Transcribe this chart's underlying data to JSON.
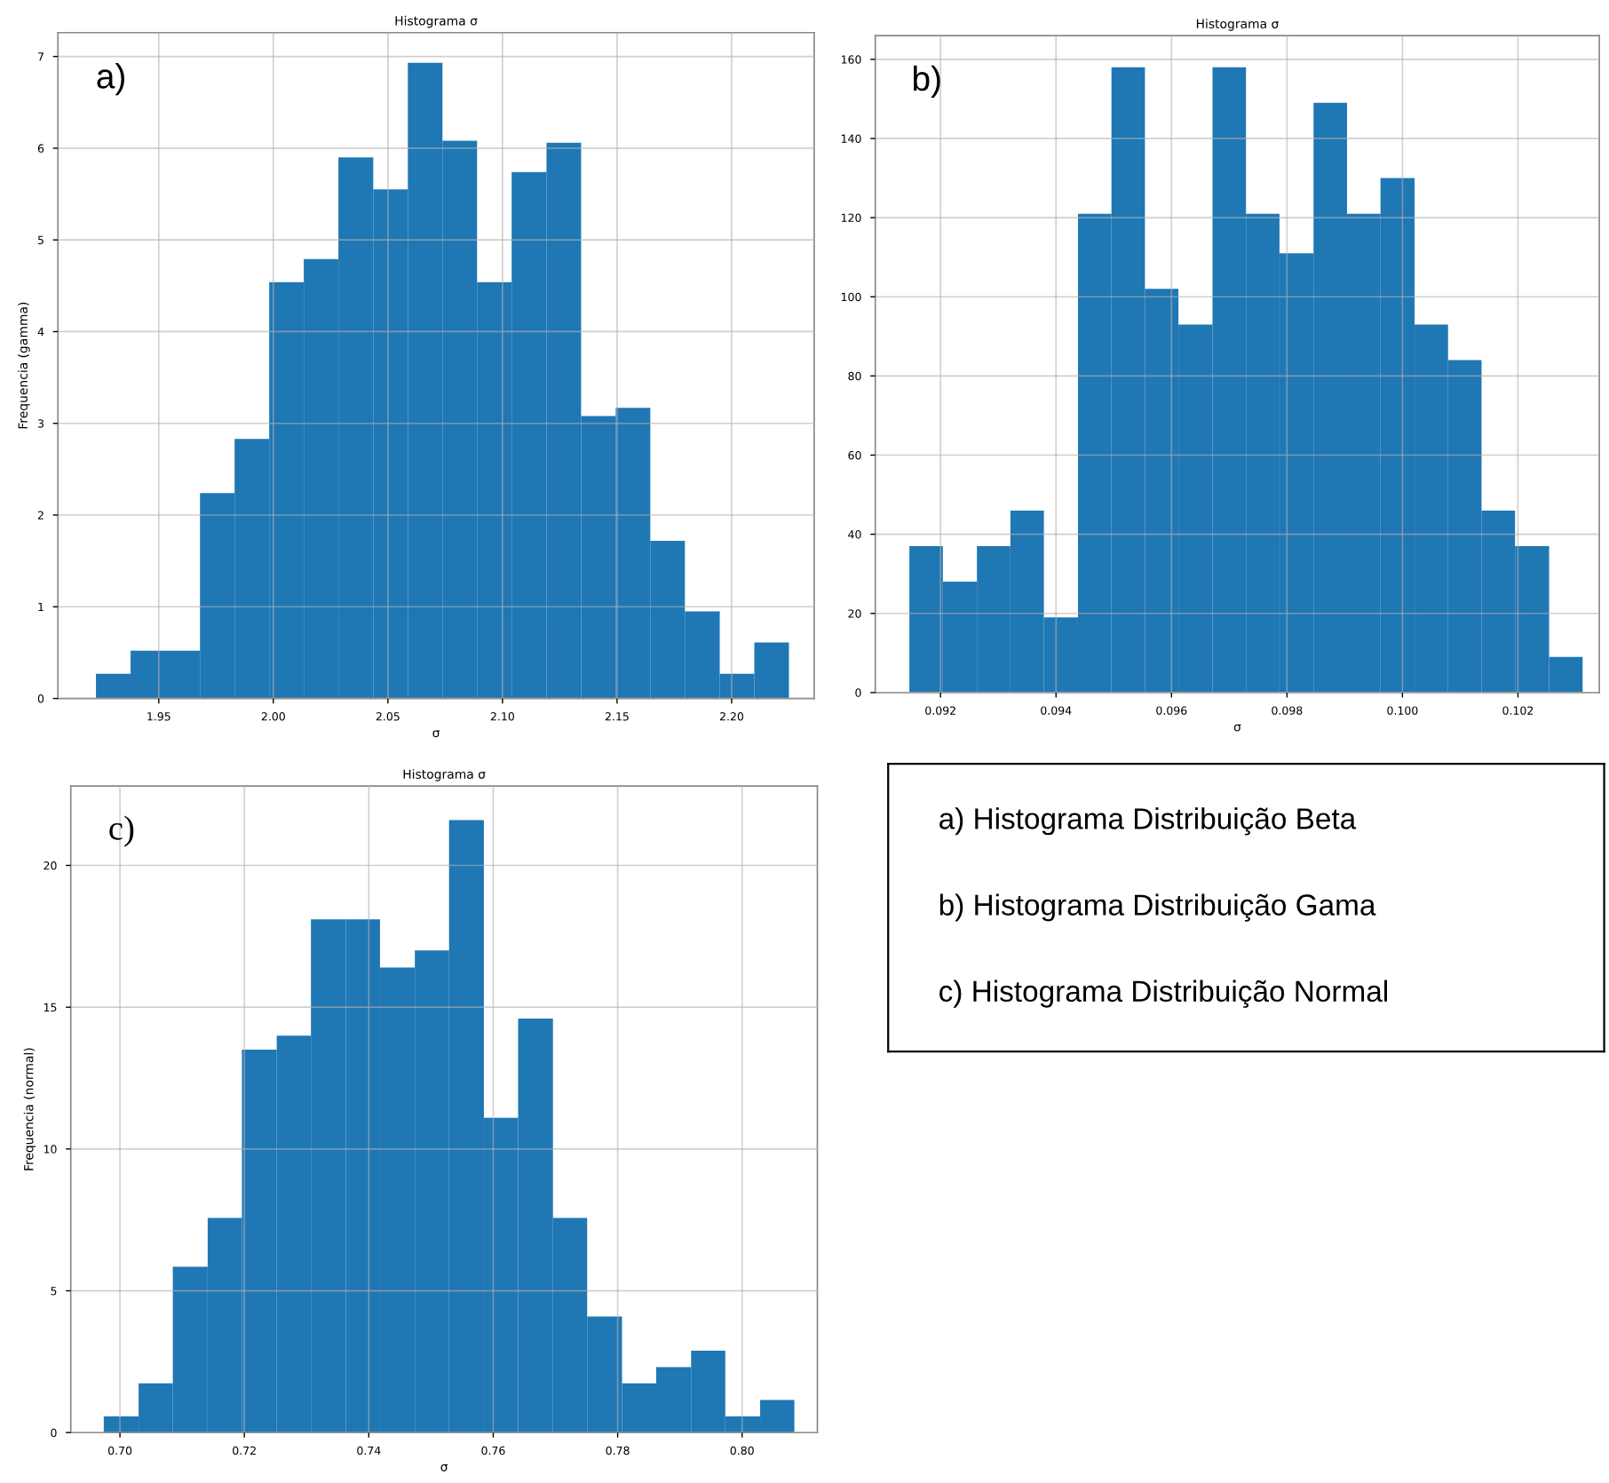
{
  "chart_data": [
    {
      "type": "histogram",
      "title": "Histograma σ",
      "xlabel": "σ",
      "ylabel": "Frequencia (gamma)",
      "annotations": [
        "a)"
      ],
      "color": "#1f77b4",
      "grid": true,
      "bins": [
        1.9226,
        1.9377,
        1.9528,
        1.968,
        1.9831,
        1.9982,
        2.0133,
        2.0284,
        2.0436,
        2.0587,
        2.0738,
        2.0889,
        2.104,
        2.1192,
        2.1343,
        2.1494,
        2.1645,
        2.1796,
        2.1948,
        2.2099,
        2.225
      ],
      "values": [
        0.27,
        0.52,
        0.52,
        2.24,
        2.83,
        4.54,
        4.79,
        5.9,
        5.55,
        6.93,
        6.08,
        4.54,
        5.74,
        6.06,
        3.08,
        3.17,
        1.72,
        0.95,
        0.27,
        0.61
      ],
      "xlim": [
        1.906,
        2.236
      ],
      "ylim": [
        0,
        7.26
      ],
      "xticks": [
        1.95,
        {
          "value": 2.0,
          "label": "2.00"
        },
        2.05,
        {
          "value": 2.1,
          "label": "2.10"
        },
        2.15,
        {
          "value": 2.2,
          "label": "2.20"
        }
      ],
      "yticks": [
        0,
        1,
        2,
        3,
        4,
        5,
        6,
        7
      ]
    },
    {
      "type": "histogram",
      "title": "Histograma σ",
      "xlabel": "σ",
      "annotations": [
        "b)"
      ],
      "color": "#1f77b4",
      "grid": true,
      "bins": [
        0.09146,
        0.09204,
        0.09263,
        0.09321,
        0.09379,
        0.09438,
        0.09496,
        0.09554,
        0.09612,
        0.09671,
        0.09729,
        0.09787,
        0.09846,
        0.09904,
        0.09962,
        0.10021,
        0.10079,
        0.10137,
        0.10195,
        0.10254,
        0.10312
      ],
      "values": [
        37,
        28,
        37,
        46,
        19,
        121,
        158,
        102,
        93,
        158,
        121,
        111,
        149,
        121,
        130,
        93,
        84,
        46,
        37,
        9
      ],
      "xlim": [
        0.09087,
        0.10341
      ],
      "ylim": [
        0,
        166
      ],
      "xticks": [
        0.092,
        0.094,
        0.096,
        0.098,
        {
          "value": 0.1,
          "label": "0.100"
        },
        0.102
      ],
      "yticks": [
        0,
        20,
        40,
        60,
        80,
        100,
        120,
        140,
        160
      ]
    },
    {
      "type": "histogram",
      "title": "Histograma σ",
      "xlabel": "σ",
      "ylabel": "Frequencia (normal)",
      "annotations": [
        "c)"
      ],
      "color": "#1f77b4",
      "grid": true,
      "bins": [
        0.6974,
        0.703,
        0.7085,
        0.7141,
        0.7196,
        0.7252,
        0.7307,
        0.7363,
        0.7418,
        0.7474,
        0.7529,
        0.7585,
        0.764,
        0.7696,
        0.7751,
        0.7807,
        0.7862,
        0.7918,
        0.7973,
        0.8029,
        0.8084
      ],
      "values": [
        0.57,
        1.74,
        5.85,
        7.57,
        13.5,
        14.0,
        18.1,
        18.1,
        16.4,
        17.0,
        21.6,
        11.1,
        14.6,
        7.57,
        4.09,
        1.74,
        2.31,
        2.89,
        0.57,
        1.15
      ],
      "xlim": [
        0.6921,
        0.8121
      ],
      "ylim": [
        0,
        22.8
      ],
      "xticks": [
        {
          "value": 0.7,
          "label": "0.70"
        },
        0.72,
        0.74,
        0.76,
        0.78,
        {
          "value": 0.8,
          "label": "0.80"
        }
      ],
      "yticks": [
        0,
        5,
        10,
        15,
        20
      ]
    },
    {
      "type": "other",
      "annotations": [
        "a) Histograma Distribuição Beta",
        "b) Histograma Distribuição Gama",
        "c) Histograma Distribuição Normal"
      ]
    }
  ]
}
